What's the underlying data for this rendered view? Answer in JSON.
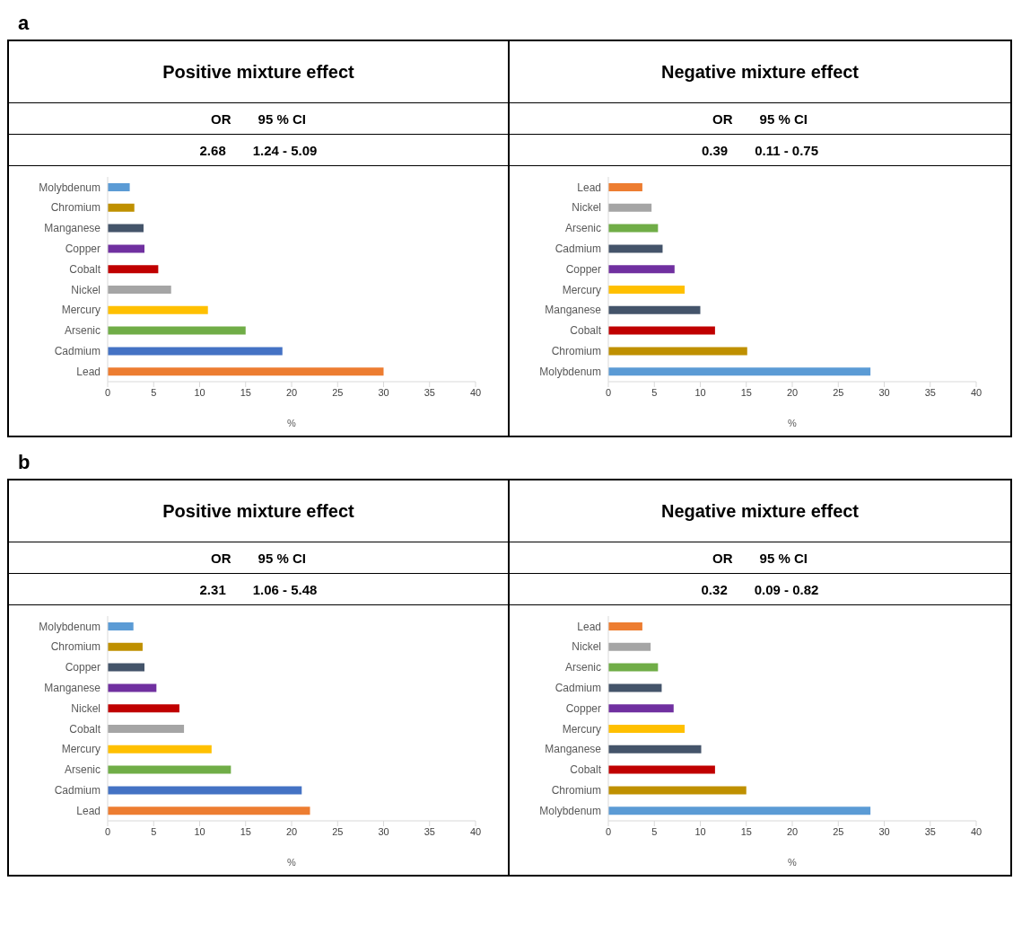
{
  "chart_data": [
    {
      "type": "bar",
      "orientation": "horizontal",
      "title": "Positive mixture effect",
      "annotations": [
        "a",
        "OR",
        "95 % CI",
        "2.68",
        "1.24 - 5.09"
      ],
      "xlabel": "%",
      "categories": [
        "Molybdenum",
        "Chromium",
        "Manganese",
        "Copper",
        "Cobalt",
        "Nickel",
        "Mercury",
        "Arsenic",
        "Cadmium",
        "Lead"
      ],
      "values": [
        2.4,
        2.9,
        3.9,
        4.0,
        5.5,
        6.9,
        10.9,
        15.0,
        19.0,
        30.0
      ],
      "colors": [
        "#5b9bd5",
        "#bf9000",
        "#44546a",
        "#7030a0",
        "#c00000",
        "#a5a5a5",
        "#ffc000",
        "#70ad47",
        "#4472c4",
        "#ed7d31"
      ],
      "xlim": [
        0,
        40
      ],
      "xticks": [
        0,
        5,
        10,
        15,
        20,
        25,
        30,
        35,
        40
      ],
      "grid": false,
      "legend": false
    },
    {
      "type": "bar",
      "orientation": "horizontal",
      "title": "Negative mixture effect",
      "annotations": [
        "OR",
        "95 % CI",
        "0.39",
        "0.11 - 0.75"
      ],
      "xlabel": "%",
      "categories": [
        "Lead",
        "Nickel",
        "Arsenic",
        "Cadmium",
        "Copper",
        "Mercury",
        "Manganese",
        "Cobalt",
        "Chromium",
        "Molybdenum"
      ],
      "values": [
        3.7,
        4.7,
        5.4,
        5.9,
        7.2,
        8.3,
        10.0,
        11.6,
        15.1,
        28.5
      ],
      "colors": [
        "#ed7d31",
        "#a5a5a5",
        "#70ad47",
        "#44546a",
        "#7030a0",
        "#ffc000",
        "#44546a",
        "#c00000",
        "#bf9000",
        "#5b9bd5"
      ],
      "xlim": [
        0,
        40
      ],
      "xticks": [
        0,
        5,
        10,
        15,
        20,
        25,
        30,
        35,
        40
      ],
      "grid": false,
      "legend": false
    },
    {
      "type": "bar",
      "orientation": "horizontal",
      "title": "Positive mixture effect",
      "annotations": [
        "b",
        "OR",
        "95 % CI",
        "2.31",
        "1.06 - 5.48"
      ],
      "xlabel": "%",
      "categories": [
        "Molybdenum",
        "Chromium",
        "Copper",
        "Manganese",
        "Nickel",
        "Cobalt",
        "Mercury",
        "Arsenic",
        "Cadmium",
        "Lead"
      ],
      "values": [
        2.8,
        3.8,
        4.0,
        5.3,
        7.8,
        8.3,
        11.3,
        13.4,
        21.1,
        22.0
      ],
      "colors": [
        "#5b9bd5",
        "#bf9000",
        "#44546a",
        "#7030a0",
        "#c00000",
        "#a5a5a5",
        "#ffc000",
        "#70ad47",
        "#4472c4",
        "#ed7d31"
      ],
      "xlim": [
        0,
        40
      ],
      "xticks": [
        0,
        5,
        10,
        15,
        20,
        25,
        30,
        35,
        40
      ],
      "grid": false,
      "legend": false
    },
    {
      "type": "bar",
      "orientation": "horizontal",
      "title": "Negative mixture effect",
      "annotations": [
        "OR",
        "95 % CI",
        "0.32",
        "0.09 - 0.82"
      ],
      "xlabel": "%",
      "categories": [
        "Lead",
        "Nickel",
        "Arsenic",
        "Cadmium",
        "Copper",
        "Mercury",
        "Manganese",
        "Cobalt",
        "Chromium",
        "Molybdenum"
      ],
      "values": [
        3.7,
        4.6,
        5.4,
        5.8,
        7.1,
        8.3,
        10.1,
        11.6,
        15.0,
        28.5
      ],
      "colors": [
        "#ed7d31",
        "#a5a5a5",
        "#70ad47",
        "#44546a",
        "#7030a0",
        "#ffc000",
        "#44546a",
        "#c00000",
        "#bf9000",
        "#5b9bd5"
      ],
      "xlim": [
        0,
        40
      ],
      "xticks": [
        0,
        5,
        10,
        15,
        20,
        25,
        30,
        35,
        40
      ],
      "grid": false,
      "legend": false
    }
  ]
}
